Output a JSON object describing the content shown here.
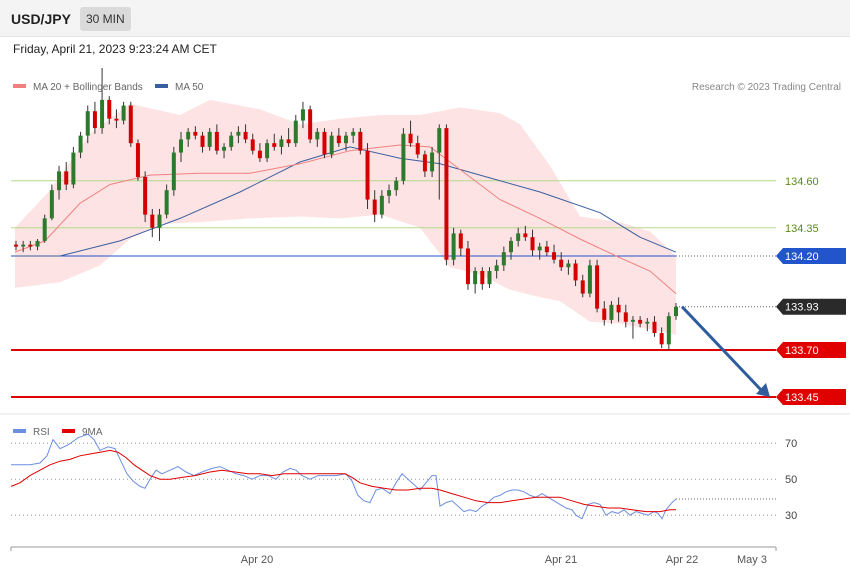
{
  "header": {
    "symbol": "USD/JPY",
    "timeframe": "30 MIN",
    "datetime": "Friday, April 21, 2023 9:23:24 AM CET"
  },
  "colors": {
    "ma20": "#f08080",
    "ma50": "#3a5fa0",
    "band_fill": "#fde3e3",
    "green_line": "#b5d98a",
    "blue_level": "#2255cc",
    "red_level": "#e00000",
    "candle_up": "#2d7a2d",
    "candle_down": "#d40000",
    "arrow": "#2f5d9e",
    "rsi": "#6c8ee0",
    "rsi_ma": "#e00000"
  },
  "legend": {
    "ma20": "MA 20 + Bollinger Bands",
    "ma50": "MA 50",
    "credit": "Research © 2023 Trading Central"
  },
  "chart_data": {
    "type": "candlestick",
    "price_axis": {
      "min": 133.37,
      "max": 135.37
    },
    "levels": [
      {
        "value": 134.6,
        "label": "134.60",
        "kind": "green"
      },
      {
        "value": 134.35,
        "label": "134.35",
        "kind": "green"
      },
      {
        "value": 134.2,
        "label": "134.20",
        "kind": "blue"
      },
      {
        "value": 133.93,
        "label": "133.93",
        "kind": "current"
      },
      {
        "value": 133.7,
        "label": "133.70",
        "kind": "red"
      },
      {
        "value": 133.45,
        "label": "133.45",
        "kind": "red"
      }
    ],
    "candles": [
      [
        134.26,
        134.28,
        134.23,
        134.25
      ],
      [
        134.25,
        134.28,
        134.22,
        134.26
      ],
      [
        134.26,
        134.28,
        134.23,
        134.25
      ],
      [
        134.25,
        134.29,
        134.23,
        134.28
      ],
      [
        134.28,
        134.42,
        134.27,
        134.4
      ],
      [
        134.4,
        134.58,
        134.39,
        134.55
      ],
      [
        134.55,
        134.68,
        134.5,
        134.65
      ],
      [
        134.65,
        134.7,
        134.55,
        134.58
      ],
      [
        134.58,
        134.78,
        134.56,
        134.75
      ],
      [
        134.75,
        134.86,
        134.72,
        134.84
      ],
      [
        134.84,
        135.0,
        134.8,
        134.97
      ],
      [
        134.97,
        135.02,
        134.85,
        134.88
      ],
      [
        134.88,
        135.2,
        134.85,
        135.03
      ],
      [
        135.03,
        135.05,
        134.9,
        134.93
      ],
      [
        134.93,
        134.98,
        134.88,
        134.92
      ],
      [
        134.92,
        135.02,
        134.9,
        135.0
      ],
      [
        135.0,
        135.02,
        134.78,
        134.8
      ],
      [
        134.8,
        134.82,
        134.6,
        134.62
      ],
      [
        134.62,
        134.65,
        134.38,
        134.42
      ],
      [
        134.42,
        134.45,
        134.3,
        134.35
      ],
      [
        134.35,
        134.45,
        134.28,
        134.42
      ],
      [
        134.42,
        134.58,
        134.4,
        134.55
      ],
      [
        134.55,
        134.78,
        134.52,
        134.75
      ],
      [
        134.75,
        134.86,
        134.7,
        134.82
      ],
      [
        134.82,
        134.88,
        134.78,
        134.86
      ],
      [
        134.86,
        134.89,
        134.82,
        134.84
      ],
      [
        134.84,
        134.86,
        134.75,
        134.78
      ],
      [
        134.78,
        134.88,
        134.76,
        134.86
      ],
      [
        134.86,
        134.9,
        134.74,
        134.76
      ],
      [
        134.76,
        134.8,
        134.72,
        134.78
      ],
      [
        134.78,
        134.86,
        134.76,
        134.84
      ],
      [
        134.84,
        134.89,
        134.8,
        134.86
      ],
      [
        134.86,
        134.9,
        134.8,
        134.82
      ],
      [
        134.82,
        134.85,
        134.74,
        134.76
      ],
      [
        134.76,
        134.8,
        134.7,
        134.72
      ],
      [
        134.72,
        134.82,
        134.7,
        134.8
      ],
      [
        134.8,
        134.85,
        134.76,
        134.78
      ],
      [
        134.78,
        134.84,
        134.74,
        134.82
      ],
      [
        134.82,
        134.88,
        134.78,
        134.8
      ],
      [
        134.8,
        134.95,
        134.78,
        134.92
      ],
      [
        134.92,
        135.02,
        134.88,
        134.98
      ],
      [
        134.98,
        135.0,
        134.8,
        134.82
      ],
      [
        134.82,
        134.88,
        134.78,
        134.86
      ],
      [
        134.86,
        134.88,
        134.72,
        134.74
      ],
      [
        134.74,
        134.86,
        134.72,
        134.84
      ],
      [
        134.84,
        134.88,
        134.78,
        134.8
      ],
      [
        134.8,
        134.86,
        134.76,
        134.84
      ],
      [
        134.84,
        134.88,
        134.8,
        134.86
      ],
      [
        134.86,
        134.88,
        134.74,
        134.76
      ],
      [
        134.76,
        134.8,
        134.45,
        134.5
      ],
      [
        134.5,
        134.55,
        134.38,
        134.42
      ],
      [
        134.42,
        134.55,
        134.4,
        134.52
      ],
      [
        134.52,
        134.58,
        134.48,
        134.55
      ],
      [
        134.55,
        134.62,
        134.52,
        134.6
      ],
      [
        134.6,
        134.88,
        134.58,
        134.85
      ],
      [
        134.85,
        134.92,
        134.78,
        134.8
      ],
      [
        134.8,
        134.84,
        134.72,
        134.74
      ],
      [
        134.74,
        134.76,
        134.62,
        134.65
      ],
      [
        134.65,
        134.78,
        134.62,
        134.75
      ],
      [
        134.75,
        134.9,
        134.5,
        134.88
      ],
      [
        134.88,
        134.9,
        134.15,
        134.18
      ],
      [
        134.18,
        134.35,
        134.15,
        134.32
      ],
      [
        134.32,
        134.34,
        134.2,
        134.24
      ],
      [
        134.24,
        134.28,
        134.02,
        134.05
      ],
      [
        134.05,
        134.14,
        134.0,
        134.12
      ],
      [
        134.12,
        134.14,
        134.02,
        134.05
      ],
      [
        134.05,
        134.14,
        134.03,
        134.12
      ],
      [
        134.12,
        134.18,
        134.08,
        134.15
      ],
      [
        134.15,
        134.25,
        134.12,
        134.22
      ],
      [
        134.22,
        134.3,
        134.18,
        134.28
      ],
      [
        134.28,
        134.35,
        134.25,
        134.32
      ],
      [
        134.32,
        134.36,
        134.28,
        134.3
      ],
      [
        134.3,
        134.34,
        134.2,
        134.23
      ],
      [
        134.23,
        134.27,
        134.18,
        134.25
      ],
      [
        134.25,
        134.28,
        134.2,
        134.22
      ],
      [
        134.22,
        134.26,
        134.16,
        134.18
      ],
      [
        134.18,
        134.22,
        134.12,
        134.14
      ],
      [
        134.14,
        134.18,
        134.1,
        134.16
      ],
      [
        134.16,
        134.18,
        134.04,
        134.07
      ],
      [
        134.07,
        134.1,
        133.98,
        134.0
      ],
      [
        134.0,
        134.18,
        133.98,
        134.15
      ],
      [
        134.15,
        134.18,
        133.9,
        133.92
      ],
      [
        133.92,
        133.96,
        133.83,
        133.86
      ],
      [
        133.86,
        133.96,
        133.84,
        133.94
      ],
      [
        133.94,
        133.98,
        133.85,
        133.9
      ],
      [
        133.9,
        133.94,
        133.82,
        133.85
      ],
      [
        133.85,
        133.88,
        133.76,
        133.86
      ],
      [
        133.86,
        133.88,
        133.82,
        133.84
      ],
      [
        133.84,
        133.87,
        133.8,
        133.85
      ],
      [
        133.85,
        133.88,
        133.77,
        133.79
      ],
      [
        133.79,
        133.82,
        133.71,
        133.73
      ],
      [
        133.73,
        133.9,
        133.7,
        133.88
      ],
      [
        133.88,
        133.95,
        133.86,
        133.93
      ]
    ],
    "ma20": [
      [
        15,
        134.22
      ],
      [
        45,
        134.28
      ],
      [
        80,
        134.48
      ],
      [
        110,
        134.58
      ],
      [
        150,
        134.63
      ],
      [
        200,
        134.64
      ],
      [
        250,
        134.64
      ],
      [
        300,
        134.69
      ],
      [
        350,
        134.76
      ],
      [
        400,
        134.79
      ],
      [
        430,
        134.78
      ],
      [
        460,
        134.66
      ],
      [
        500,
        134.5
      ],
      [
        540,
        134.4
      ],
      [
        580,
        134.29
      ],
      [
        620,
        134.19
      ],
      [
        650,
        134.12
      ],
      [
        676,
        134.0
      ]
    ],
    "ma50": [
      [
        15,
        134.2
      ],
      [
        60,
        134.2
      ],
      [
        120,
        134.28
      ],
      [
        180,
        134.4
      ],
      [
        240,
        134.54
      ],
      [
        300,
        134.7
      ],
      [
        350,
        134.78
      ],
      [
        400,
        134.72
      ],
      [
        440,
        134.69
      ],
      [
        480,
        134.63
      ],
      [
        540,
        134.54
      ],
      [
        600,
        134.43
      ],
      [
        640,
        134.3
      ],
      [
        676,
        134.22
      ]
    ],
    "bb_upper": [
      [
        15,
        134.35
      ],
      [
        50,
        134.55
      ],
      [
        90,
        134.85
      ],
      [
        130,
        135.01
      ],
      [
        180,
        134.95
      ],
      [
        210,
        135.03
      ],
      [
        260,
        134.98
      ],
      [
        300,
        134.9
      ],
      [
        340,
        134.93
      ],
      [
        380,
        134.95
      ],
      [
        420,
        134.95
      ],
      [
        460,
        134.99
      ],
      [
        500,
        134.96
      ],
      [
        520,
        134.9
      ],
      [
        550,
        134.68
      ],
      [
        580,
        134.41
      ],
      [
        620,
        134.38
      ],
      [
        650,
        134.33
      ],
      [
        676,
        134.2
      ]
    ],
    "bb_lower": [
      [
        15,
        134.03
      ],
      [
        60,
        134.06
      ],
      [
        100,
        134.15
      ],
      [
        130,
        134.29
      ],
      [
        160,
        134.37
      ],
      [
        200,
        134.38
      ],
      [
        250,
        134.4
      ],
      [
        300,
        134.41
      ],
      [
        340,
        134.4
      ],
      [
        380,
        134.42
      ],
      [
        420,
        134.35
      ],
      [
        450,
        134.14
      ],
      [
        480,
        134.1
      ],
      [
        510,
        134.02
      ],
      [
        540,
        133.98
      ],
      [
        560,
        133.96
      ],
      [
        590,
        133.85
      ],
      [
        620,
        133.84
      ],
      [
        650,
        133.81
      ],
      [
        676,
        133.78
      ]
    ],
    "forecast_arrow": {
      "from": 133.93,
      "to": 133.45
    },
    "rsi_axis": {
      "min": 14,
      "max": 84,
      "ticks": [
        70,
        50,
        30
      ]
    },
    "rsi": [
      [
        11,
        58
      ],
      [
        20,
        58
      ],
      [
        30,
        58
      ],
      [
        40,
        59
      ],
      [
        47,
        63
      ],
      [
        53,
        72
      ],
      [
        60,
        67
      ],
      [
        68,
        69
      ],
      [
        78,
        73
      ],
      [
        88,
        75
      ],
      [
        94,
        72
      ],
      [
        100,
        66
      ],
      [
        108,
        68
      ],
      [
        115,
        67
      ],
      [
        121,
        60
      ],
      [
        127,
        53
      ],
      [
        133,
        49
      ],
      [
        140,
        46
      ],
      [
        145,
        45
      ],
      [
        150,
        50
      ],
      [
        156,
        55
      ],
      [
        162,
        53
      ],
      [
        170,
        55
      ],
      [
        178,
        57
      ],
      [
        186,
        54
      ],
      [
        194,
        52
      ],
      [
        202,
        54
      ],
      [
        212,
        56
      ],
      [
        220,
        57
      ],
      [
        228,
        55
      ],
      [
        236,
        53
      ],
      [
        244,
        52
      ],
      [
        252,
        50
      ],
      [
        260,
        52
      ],
      [
        268,
        52
      ],
      [
        276,
        50
      ],
      [
        283,
        54
      ],
      [
        290,
        56
      ],
      [
        296,
        55
      ],
      [
        302,
        52
      ],
      [
        310,
        50
      ],
      [
        318,
        52
      ],
      [
        326,
        52
      ],
      [
        336,
        52
      ],
      [
        346,
        53
      ],
      [
        352,
        49
      ],
      [
        358,
        41
      ],
      [
        364,
        38
      ],
      [
        370,
        37
      ],
      [
        376,
        44
      ],
      [
        382,
        45
      ],
      [
        390,
        42
      ],
      [
        396,
        48
      ],
      [
        402,
        53
      ],
      [
        408,
        50
      ],
      [
        414,
        47
      ],
      [
        420,
        44
      ],
      [
        426,
        48
      ],
      [
        432,
        52
      ],
      [
        436,
        52
      ],
      [
        440,
        35
      ],
      [
        446,
        37
      ],
      [
        452,
        38
      ],
      [
        458,
        35
      ],
      [
        464,
        32
      ],
      [
        470,
        33
      ],
      [
        476,
        32
      ],
      [
        482,
        35
      ],
      [
        488,
        37
      ],
      [
        494,
        40
      ],
      [
        500,
        41
      ],
      [
        506,
        43
      ],
      [
        512,
        44
      ],
      [
        518,
        44
      ],
      [
        524,
        43
      ],
      [
        530,
        41
      ],
      [
        536,
        40
      ],
      [
        542,
        42
      ],
      [
        548,
        40
      ],
      [
        554,
        38
      ],
      [
        560,
        36
      ],
      [
        566,
        34
      ],
      [
        572,
        33
      ],
      [
        576,
        30
      ],
      [
        582,
        28
      ],
      [
        588,
        36
      ],
      [
        594,
        37
      ],
      [
        600,
        36
      ],
      [
        606,
        30
      ],
      [
        612,
        32
      ],
      [
        618,
        31
      ],
      [
        624,
        33
      ],
      [
        630,
        30
      ],
      [
        636,
        32
      ],
      [
        642,
        31
      ],
      [
        648,
        30
      ],
      [
        654,
        32
      ],
      [
        658,
        31
      ],
      [
        662,
        28
      ],
      [
        666,
        33
      ],
      [
        672,
        37
      ],
      [
        676,
        39
      ]
    ],
    "rsi_ma": [
      [
        11,
        46
      ],
      [
        20,
        48
      ],
      [
        30,
        52
      ],
      [
        40,
        55
      ],
      [
        50,
        58
      ],
      [
        60,
        60
      ],
      [
        70,
        61
      ],
      [
        80,
        63
      ],
      [
        90,
        64
      ],
      [
        100,
        65
      ],
      [
        110,
        66
      ],
      [
        118,
        65
      ],
      [
        126,
        62
      ],
      [
        134,
        58
      ],
      [
        142,
        55
      ],
      [
        150,
        52
      ],
      [
        160,
        50
      ],
      [
        170,
        50
      ],
      [
        182,
        51
      ],
      [
        195,
        52
      ],
      [
        210,
        54
      ],
      [
        222,
        55
      ],
      [
        235,
        54
      ],
      [
        248,
        53
      ],
      [
        260,
        53
      ],
      [
        272,
        52
      ],
      [
        284,
        53
      ],
      [
        296,
        53
      ],
      [
        308,
        53
      ],
      [
        320,
        53
      ],
      [
        332,
        53
      ],
      [
        345,
        53
      ],
      [
        352,
        51
      ],
      [
        360,
        48
      ],
      [
        372,
        46
      ],
      [
        384,
        45
      ],
      [
        396,
        44
      ],
      [
        408,
        44
      ],
      [
        420,
        45
      ],
      [
        432,
        45
      ],
      [
        440,
        44
      ],
      [
        452,
        42
      ],
      [
        464,
        40
      ],
      [
        476,
        38
      ],
      [
        488,
        37
      ],
      [
        500,
        37
      ],
      [
        512,
        38
      ],
      [
        524,
        39
      ],
      [
        536,
        40
      ],
      [
        548,
        40
      ],
      [
        560,
        40
      ],
      [
        572,
        38
      ],
      [
        584,
        36
      ],
      [
        596,
        35
      ],
      [
        608,
        34
      ],
      [
        620,
        34
      ],
      [
        632,
        33
      ],
      [
        646,
        32
      ],
      [
        660,
        32
      ],
      [
        670,
        33
      ],
      [
        676,
        33
      ]
    ],
    "x_labels": [
      {
        "text": "Apr 20",
        "pos": 257
      },
      {
        "text": "Apr 21",
        "pos": 561
      },
      {
        "text": "Apr 22",
        "pos": 682
      },
      {
        "text": "May 3",
        "pos": 752
      }
    ]
  }
}
